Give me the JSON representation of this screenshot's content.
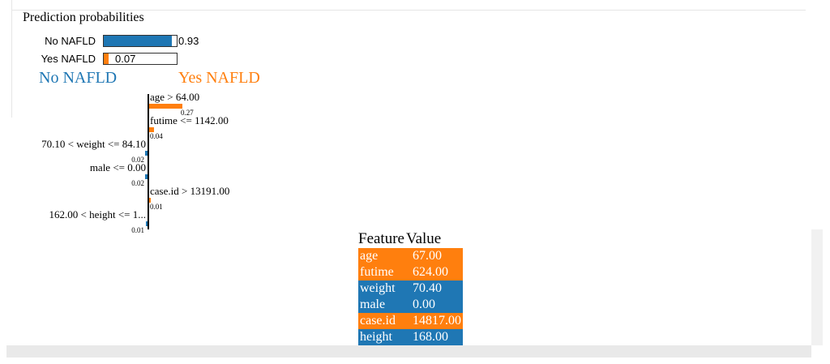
{
  "prediction": {
    "title": "Prediction probabilities",
    "rows": [
      {
        "label": "No NAFLD",
        "value": 0.93,
        "value_text": "0.93",
        "color": "#1f77b4"
      },
      {
        "label": "Yes NAFLD",
        "value": 0.07,
        "value_text": "0.07",
        "color": "#ff7f0e"
      }
    ]
  },
  "classes": {
    "negative": "No NAFLD",
    "positive": "Yes NAFLD"
  },
  "colors": {
    "negative": "#1f77b4",
    "positive": "#ff7f0e"
  },
  "chart_data": {
    "type": "bar",
    "categories": [
      "age > 64.00",
      "futime <= 1142.00",
      "70.10 < weight <= 84.10",
      "male <= 0.00",
      "case.id > 13191.00",
      "162.00 < height <= 1..."
    ],
    "values": [
      0.27,
      0.04,
      0.02,
      0.02,
      0.01,
      0.01
    ],
    "value_labels": [
      "0.27",
      "0.04",
      "0.02",
      "0.02",
      "0.01",
      "0.01"
    ],
    "sides": [
      "positive",
      "positive",
      "negative",
      "negative",
      "positive",
      "negative"
    ]
  },
  "table": {
    "headers": [
      "Feature",
      "Value"
    ],
    "rows": [
      {
        "feature": "age",
        "value": "67.00",
        "side": "positive"
      },
      {
        "feature": "futime",
        "value": "624.00",
        "side": "positive"
      },
      {
        "feature": "weight",
        "value": "70.40",
        "side": "negative"
      },
      {
        "feature": "male",
        "value": "0.00",
        "side": "negative"
      },
      {
        "feature": "case.id",
        "value": "14817.00",
        "side": "positive"
      },
      {
        "feature": "height",
        "value": "168.00",
        "side": "negative"
      }
    ]
  }
}
